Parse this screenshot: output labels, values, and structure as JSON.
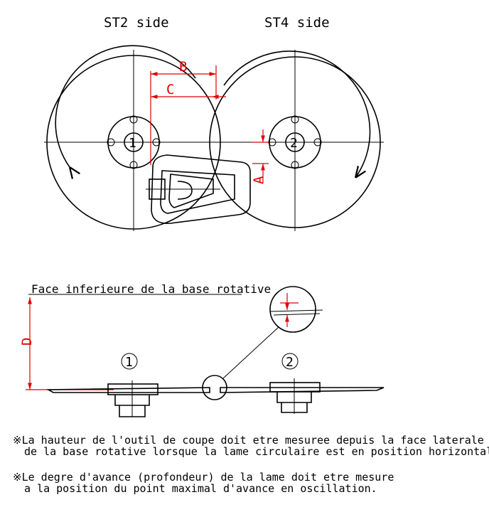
{
  "top": {
    "left_side_label": "ST2 side",
    "right_side_label": "ST4 side",
    "left_marker": "1",
    "right_marker": "2"
  },
  "dimensions": {
    "A": "A",
    "B": "B",
    "C": "C",
    "D": "D"
  },
  "side": {
    "base_face_label": "Face inferieure de la base rotative",
    "left_marker": "1",
    "right_marker": "2"
  },
  "notes": {
    "note1_line1": "※La hauteur de l'outil de coupe doit etre mesuree depuis la face laterale inferieure",
    "note1_line2": "de la base rotative lorsque la lame circulaire est en position horizontale.",
    "note2_line1": "※Le degre d'avance (profondeur) de la lame doit etre mesure",
    "note2_line2": "a la position du point maximal d'avance en oscillation."
  },
  "colors": {
    "line": "#000000",
    "dimension": "#e00000"
  }
}
